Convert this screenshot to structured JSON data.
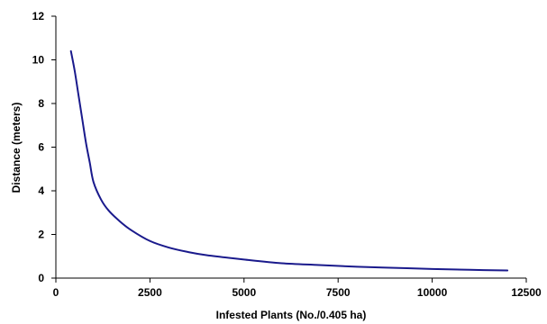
{
  "chart_data": {
    "type": "line",
    "title": "",
    "xlabel": "Infested Plants (No./0.405 ha)",
    "ylabel": "Distance (meters)",
    "xlim": [
      0,
      12500
    ],
    "ylim": [
      0,
      12
    ],
    "x_ticks": [
      0,
      2500,
      5000,
      7500,
      10000,
      12500
    ],
    "y_ticks": [
      0,
      2,
      4,
      6,
      8,
      10,
      12
    ],
    "x_tick_labels": [
      "0",
      "2500",
      "5000",
      "7500",
      "10000",
      "12500"
    ],
    "y_tick_labels": [
      "0",
      "2",
      "4",
      "6",
      "8",
      "10",
      "12"
    ],
    "grid": false,
    "legend": "none",
    "series": [
      {
        "color": "#1a1a8c",
        "x": [
          400,
          500,
          600,
          700,
          800,
          900,
          1000,
          1200,
          1400,
          1700,
          2000,
          2500,
          3000,
          3500,
          4000,
          5000,
          6000,
          7000,
          8000,
          9000,
          10000,
          11000,
          12000
        ],
        "y": [
          10.4,
          9.5,
          8.4,
          7.3,
          6.2,
          5.3,
          4.4,
          3.6,
          3.1,
          2.6,
          2.2,
          1.7,
          1.4,
          1.2,
          1.05,
          0.85,
          0.68,
          0.6,
          0.52,
          0.47,
          0.42,
          0.38,
          0.35
        ]
      }
    ]
  }
}
